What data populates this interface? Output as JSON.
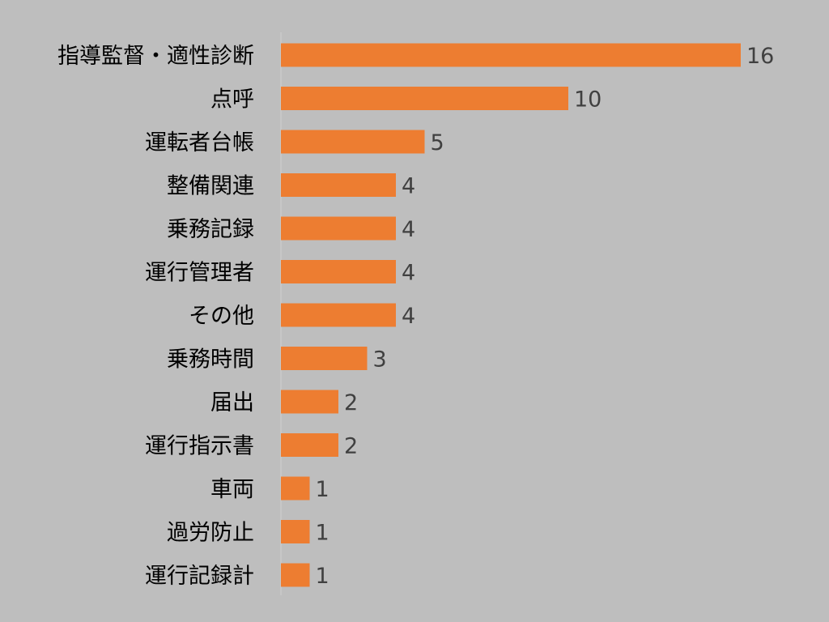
{
  "chart_data": {
    "type": "bar",
    "orientation": "horizontal",
    "categories": [
      "指導監督・適性診断",
      "点呼",
      "運転者台帳",
      "整備関連",
      "乗務記録",
      "運行管理者",
      "その他",
      "乗務時間",
      "届出",
      "運行指示書",
      "車両",
      "過労防止",
      "運行記録計"
    ],
    "values": [
      16,
      10,
      5,
      4,
      4,
      4,
      4,
      3,
      2,
      2,
      1,
      1,
      1
    ],
    "data_labels": [
      "16",
      "10",
      "5",
      "4",
      "4",
      "4",
      "4",
      "3",
      "2",
      "2",
      "1",
      "1",
      "1"
    ],
    "xlim": [
      0,
      16
    ],
    "grid": false,
    "legend": "none",
    "bar_color": "#ed7d31",
    "background_color": "#bebebe"
  }
}
